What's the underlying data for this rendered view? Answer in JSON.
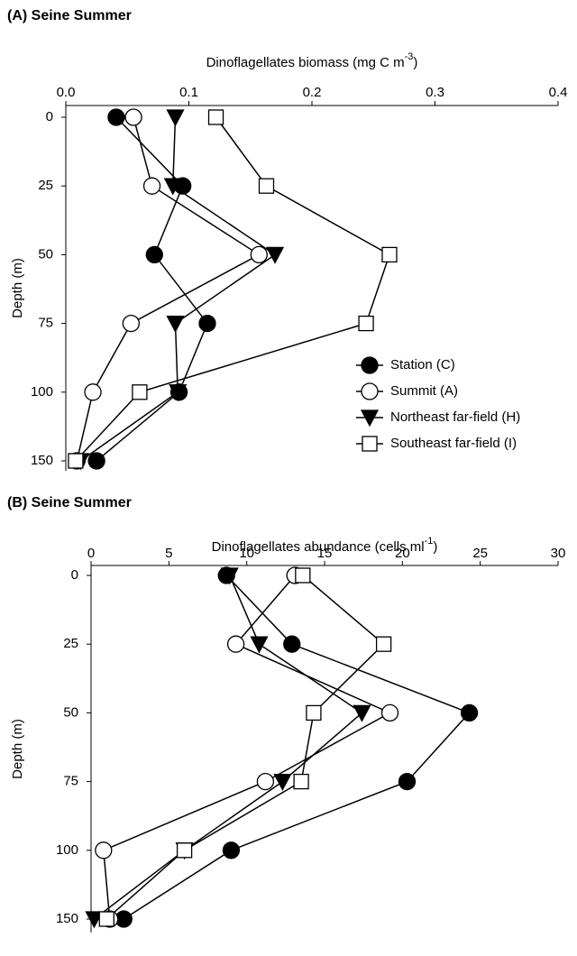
{
  "chart_data": [
    {
      "type": "line",
      "title": "(A) Seine Summer",
      "xlabel": {
        "text": "Dinoflagellates biomass (mg C m",
        "superscript": "-3",
        "suffix": ")"
      },
      "ylabel": "Depth (m)",
      "categories": [
        0,
        25,
        50,
        75,
        100,
        150
      ],
      "xlim": [
        0,
        0.4
      ],
      "xticks": [
        {
          "value": 0,
          "label": "0.0"
        },
        0.1,
        0.2,
        0.3,
        0.4
      ],
      "legend": true,
      "legend_position": "right",
      "series": [
        {
          "name": "Station (C)",
          "color": "#000000",
          "marker": "circle",
          "fill": "#000000",
          "values": [
            0.041,
            0.095,
            0.072,
            0.115,
            0.092,
            0.025
          ]
        },
        {
          "name": "Summit (A)",
          "color": "#000000",
          "marker": "circle",
          "fill": "#ffffff",
          "values": [
            0.055,
            0.07,
            0.157,
            0.053,
            0.022,
            0.009
          ]
        },
        {
          "name": "Northeast far-field (H)",
          "color": "#000000",
          "marker": "triangle-down",
          "fill": "#000000",
          "values": [
            0.089,
            0.087,
            0.17,
            0.089,
            0.091,
            0.012
          ]
        },
        {
          "name": "Southeast far-field (I)",
          "color": "#000000",
          "marker": "square",
          "fill": "#ffffff",
          "values": [
            0.122,
            0.163,
            0.263,
            0.244,
            0.06,
            0.008
          ]
        }
      ]
    },
    {
      "type": "line",
      "title": "(B) Seine Summer",
      "xlabel": {
        "text": "Dinoflagellates abundance (cells ml",
        "superscript": "-1",
        "suffix": ")"
      },
      "ylabel": "Depth (m)",
      "categories": [
        0,
        25,
        50,
        75,
        100,
        150
      ],
      "xlim": [
        0,
        30
      ],
      "xticks": [
        0,
        5,
        10,
        15,
        20,
        25,
        30
      ],
      "legend": false,
      "series": [
        {
          "color": "#000000",
          "marker": "circle",
          "fill": "#000000",
          "values": [
            8.7,
            12.9,
            24.3,
            20.3,
            9.0,
            2.1
          ]
        },
        {
          "color": "#000000",
          "marker": "circle",
          "fill": "#ffffff",
          "values": [
            13.1,
            9.3,
            19.2,
            11.2,
            0.8,
            1.2
          ]
        },
        {
          "color": "#000000",
          "marker": "triangle-down",
          "fill": "#000000",
          "values": [
            8.9,
            10.8,
            17.4,
            12.3,
            6.0,
            0.2
          ]
        },
        {
          "color": "#000000",
          "marker": "square",
          "fill": "#ffffff",
          "values": [
            13.6,
            18.8,
            14.3,
            13.5,
            6.0,
            1.0
          ]
        }
      ]
    }
  ]
}
